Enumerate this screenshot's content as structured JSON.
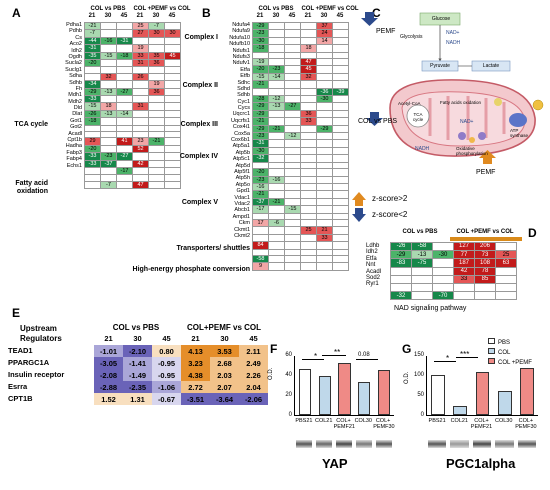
{
  "panelA": {
    "label": "A",
    "head1": "COL vs PBS",
    "head2": "COL +PEMF vs COL",
    "cols": [
      "21",
      "30",
      "45",
      "21",
      "30",
      "45"
    ],
    "genes": [
      "Pdha1",
      "Pdhb",
      "Cs",
      "Aco2",
      "Idh2",
      "Ogdh",
      "Sucla2",
      "Suclg1",
      "Sdha",
      "Sdhb",
      "Fh",
      "Mdh1",
      "Mdh2",
      "Dld",
      "Dlat",
      "Got1",
      "Got2",
      "Acadl",
      "Cpt1b",
      "Hadha",
      "Fabp3",
      "Fabp4",
      "Echs1"
    ],
    "vals": [
      [
        "-21",
        "",
        "",
        "25",
        "-7",
        ""
      ],
      [
        "-7",
        "",
        "",
        "27",
        "30",
        "30"
      ],
      [
        "-44",
        "-16",
        "-31",
        "",
        "",
        ""
      ],
      [
        "-31",
        "",
        "",
        "19",
        "",
        ""
      ],
      [
        "-35",
        "-15",
        "-18",
        "33",
        "35",
        "45"
      ],
      [
        "-20",
        "",
        "",
        "31",
        "36",
        ""
      ],
      [
        "",
        "",
        "",
        "",
        "",
        ""
      ],
      [
        "",
        "32",
        "",
        "26",
        "",
        ""
      ],
      [
        "-34",
        "",
        "",
        "",
        "19",
        ""
      ],
      [
        "-29",
        "-13",
        "-27",
        "",
        "36",
        ""
      ],
      [
        "-33",
        "",
        "",
        "",
        "",
        ""
      ],
      [
        "-15",
        "18",
        "",
        "31",
        "",
        ""
      ],
      [
        "-26",
        "-13",
        "-14",
        "",
        "",
        ""
      ],
      [
        "-18",
        "",
        "",
        "",
        "",
        ""
      ],
      [
        "",
        "",
        "",
        "",
        "",
        ""
      ],
      [
        "",
        "",
        "",
        "",
        "",
        ""
      ],
      [
        "29",
        "",
        "41",
        "23",
        "-21",
        ""
      ],
      [
        "-20",
        "",
        "",
        "52",
        "",
        ""
      ],
      [
        "-33",
        "-23",
        "-27",
        "",
        "",
        ""
      ],
      [
        "-33",
        "-37",
        "",
        "42",
        "",
        ""
      ],
      [
        "",
        "",
        "-17",
        "",
        "",
        ""
      ],
      [
        "",
        "",
        "",
        "",
        "",
        ""
      ],
      [
        "",
        "-7",
        "",
        "47",
        "",
        ""
      ]
    ],
    "colors": [
      [
        "g1",
        "w",
        "w",
        "r1",
        "g1",
        "w"
      ],
      [
        "g1",
        "w",
        "w",
        "r2",
        "r2",
        "r2"
      ],
      [
        "g3",
        "g2",
        "g3",
        "w",
        "w",
        "w"
      ],
      [
        "g3",
        "w",
        "w",
        "r1",
        "w",
        "w"
      ],
      [
        "g3",
        "g1",
        "g2",
        "r2",
        "r2",
        "r3"
      ],
      [
        "g2",
        "w",
        "w",
        "r2",
        "r2",
        "w"
      ],
      [
        "w",
        "w",
        "w",
        "w",
        "w",
        "w"
      ],
      [
        "w",
        "r2",
        "w",
        "r2",
        "w",
        "w"
      ],
      [
        "g3",
        "w",
        "w",
        "w",
        "r1",
        "w"
      ],
      [
        "g2",
        "g1",
        "g2",
        "w",
        "r2",
        "w"
      ],
      [
        "g3",
        "w",
        "w",
        "w",
        "w",
        "w"
      ],
      [
        "g1",
        "r1",
        "w",
        "r2",
        "w",
        "w"
      ],
      [
        "g2",
        "g1",
        "g1",
        "w",
        "w",
        "w"
      ],
      [
        "g2",
        "w",
        "w",
        "w",
        "w",
        "w"
      ],
      [
        "w",
        "w",
        "w",
        "w",
        "w",
        "w"
      ],
      [
        "w",
        "w",
        "w",
        "w",
        "w",
        "w"
      ],
      [
        "r2",
        "w",
        "r3",
        "r1",
        "g2",
        "w"
      ],
      [
        "g2",
        "w",
        "w",
        "r3",
        "w",
        "w"
      ],
      [
        "g3",
        "g2",
        "g3",
        "w",
        "w",
        "w"
      ],
      [
        "g3",
        "g3",
        "w",
        "r3",
        "w",
        "w"
      ],
      [
        "w",
        "w",
        "g2",
        "w",
        "w",
        "w"
      ],
      [
        "w",
        "w",
        "w",
        "w",
        "w",
        "w"
      ],
      [
        "w",
        "g1",
        "w",
        "r3",
        "w",
        "w"
      ]
    ],
    "groups": [
      "TCA cycle",
      "Fatty acid oxidation"
    ]
  },
  "panelB": {
    "label": "B",
    "head1": "COL vs PBS",
    "head2": "COL +PEMF vs COL",
    "cols": [
      "21",
      "30",
      "45",
      "21",
      "30",
      "45"
    ],
    "genes": [
      "Ndufa4",
      "Ndufa9",
      "Ndufa10",
      "Ndufb10",
      "Ndufs1",
      "Ndufs3",
      "Ndufv1",
      "Etfa",
      "Etfb",
      "Sdhc",
      "Sdhd",
      "Sdhb",
      "Cyc1",
      "Cycs",
      "Uqcrc1",
      "Uqcrfs1",
      "Cox4i1",
      "Cox5a",
      "Cox6b1",
      "Atp5a1",
      "Atp5b",
      "Atp5c1",
      "Atp5d",
      "Atp5f1",
      "Atp5h",
      "Atp5o",
      "Gpd1",
      "Vdac1",
      "Vdac2",
      "Abcb1",
      "Ampd1",
      "Ckm",
      "Ckmt1",
      "Ckmt2"
    ],
    "vals": [
      [
        "-29",
        "",
        "",
        "",
        "37",
        ""
      ],
      [
        "-23",
        "",
        "",
        "",
        "24",
        ""
      ],
      [
        "-30",
        "",
        "",
        "",
        "14",
        ""
      ],
      [
        "-18",
        "",
        "",
        "18",
        "",
        ""
      ],
      [
        "",
        "",
        "",
        "",
        "",
        ""
      ],
      [
        "-19",
        "",
        "",
        "47",
        "",
        ""
      ],
      [
        "-20",
        "-23",
        "",
        "45",
        "",
        ""
      ],
      [
        "-15",
        "-14",
        "",
        "32",
        "",
        ""
      ],
      [
        "-21",
        "",
        "",
        "",
        "",
        ""
      ],
      [
        "",
        "",
        "",
        "",
        "-36",
        "-39"
      ],
      [
        "-28",
        "-12",
        "",
        "",
        "-30",
        ""
      ],
      [
        "-29",
        "-13",
        "-27",
        "",
        "",
        ""
      ],
      [
        "-29",
        "",
        "",
        "36",
        "",
        ""
      ],
      [
        "-21",
        "",
        "",
        "33",
        "",
        ""
      ],
      [
        "-29",
        "-21",
        "",
        "",
        "-29",
        ""
      ],
      [
        "-23",
        "",
        "-12",
        "",
        "",
        ""
      ],
      [
        "-31",
        "",
        "",
        "",
        "",
        ""
      ],
      [
        "-30",
        "",
        "",
        "",
        "",
        ""
      ],
      [
        "-32",
        "",
        "",
        "",
        "",
        ""
      ],
      [
        "",
        "",
        "",
        "",
        "",
        ""
      ],
      [
        "-20",
        "",
        "",
        "",
        "",
        ""
      ],
      [
        "-23",
        "-16",
        "",
        "",
        "",
        ""
      ],
      [
        "-16",
        "",
        "",
        "",
        "",
        ""
      ],
      [
        "-21",
        "",
        "",
        "",
        "",
        ""
      ],
      [
        "-37",
        "-21",
        "",
        "",
        "",
        ""
      ],
      [
        "-17",
        "",
        "-15",
        "",
        "",
        ""
      ],
      [
        "",
        "",
        "",
        "",
        "",
        ""
      ],
      [
        "17",
        "-6",
        "",
        "",
        "",
        ""
      ],
      [
        "",
        "",
        "",
        "25",
        "21",
        ""
      ],
      [
        "",
        "",
        "",
        "",
        "33",
        ""
      ],
      [
        "84",
        "",
        "",
        "",
        "",
        ""
      ],
      [
        "",
        "",
        "",
        "",
        "",
        ""
      ],
      [
        "-58",
        "",
        "",
        "",
        "",
        ""
      ],
      [
        "9",
        "",
        "",
        "",
        "",
        ""
      ]
    ],
    "colors": [
      [
        "g2",
        "w",
        "w",
        "w",
        "r2",
        "w"
      ],
      [
        "g2",
        "w",
        "w",
        "w",
        "r2",
        "w"
      ],
      [
        "g2",
        "w",
        "w",
        "w",
        "r1",
        "w"
      ],
      [
        "g2",
        "w",
        "w",
        "r1",
        "w",
        "w"
      ],
      [
        "w",
        "w",
        "w",
        "w",
        "w",
        "w"
      ],
      [
        "g1",
        "w",
        "w",
        "r3",
        "w",
        "w"
      ],
      [
        "g2",
        "g2",
        "w",
        "r3",
        "w",
        "w"
      ],
      [
        "g1",
        "g1",
        "w",
        "r2",
        "w",
        "w"
      ],
      [
        "g2",
        "w",
        "w",
        "w",
        "w",
        "w"
      ],
      [
        "w",
        "w",
        "w",
        "w",
        "g3",
        "g3"
      ],
      [
        "g2",
        "g1",
        "w",
        "w",
        "g2",
        "w"
      ],
      [
        "g2",
        "g1",
        "g2",
        "w",
        "w",
        "w"
      ],
      [
        "g2",
        "w",
        "w",
        "r2",
        "w",
        "w"
      ],
      [
        "g2",
        "w",
        "w",
        "r2",
        "w",
        "w"
      ],
      [
        "g2",
        "g2",
        "w",
        "w",
        "g2",
        "w"
      ],
      [
        "g2",
        "w",
        "g1",
        "w",
        "w",
        "w"
      ],
      [
        "g3",
        "w",
        "w",
        "w",
        "w",
        "w"
      ],
      [
        "g2",
        "w",
        "w",
        "w",
        "w",
        "w"
      ],
      [
        "g3",
        "w",
        "w",
        "w",
        "w",
        "w"
      ],
      [
        "w",
        "w",
        "w",
        "w",
        "w",
        "w"
      ],
      [
        "g2",
        "w",
        "w",
        "w",
        "w",
        "w"
      ],
      [
        "g2",
        "g1",
        "w",
        "w",
        "w",
        "w"
      ],
      [
        "g1",
        "w",
        "w",
        "w",
        "w",
        "w"
      ],
      [
        "g2",
        "w",
        "w",
        "w",
        "w",
        "w"
      ],
      [
        "g3",
        "g2",
        "w",
        "w",
        "w",
        "w"
      ],
      [
        "g1",
        "w",
        "g1",
        "w",
        "w",
        "w"
      ],
      [
        "w",
        "w",
        "w",
        "w",
        "w",
        "w"
      ],
      [
        "r1",
        "g1",
        "w",
        "w",
        "w",
        "w"
      ],
      [
        "w",
        "w",
        "w",
        "r2",
        "r2",
        "w"
      ],
      [
        "w",
        "w",
        "w",
        "w",
        "r2",
        "w"
      ],
      [
        "r3",
        "w",
        "w",
        "w",
        "w",
        "w"
      ],
      [
        "w",
        "w",
        "w",
        "w",
        "w",
        "w"
      ],
      [
        "g3",
        "w",
        "w",
        "w",
        "w",
        "w"
      ],
      [
        "r1",
        "w",
        "w",
        "w",
        "w",
        "w"
      ]
    ],
    "groups": [
      "Complex I",
      "Complex II",
      "Complex III",
      "Complex IV",
      "Complex V",
      "Transporters/ shuttles",
      "High-energy phosphate conversion"
    ]
  },
  "panelC": {
    "label": "C",
    "pemf1": "PEMF",
    "colpemf": "COL vs PBS",
    "pemf2": "PEMF",
    "glucose": "Glucose",
    "glycolysis": "Glycolysis",
    "nad1": "NAD+",
    "nadh1": "NADH",
    "pyruvate": "Pyruvate",
    "lactate": "Lactate",
    "acetyl": "Acetyl-CoA",
    "tca": "TCA cycle",
    "fao": "Fatty acids oxidation",
    "atp": "ATP synthase",
    "oxphos": "Oxidative phosphorylation",
    "nadh2": "NADH",
    "nad2": "NAD+",
    "legend_up": "z-score>2",
    "legend_down": "z-score<2"
  },
  "panelD": {
    "label": "D",
    "head1": "COL vs PBS",
    "head2": "COL +PEMF vs COL",
    "genes": [
      "Ldhb",
      "Idh2",
      "Etfa",
      "Nnt",
      "Acadl",
      "Sod2",
      "Ryr1"
    ],
    "vals": [
      [
        "-26",
        "-58",
        "",
        "127",
        "206",
        ""
      ],
      [
        "-29",
        "-13",
        "-30",
        "77",
        "73",
        "25"
      ],
      [
        "-83",
        "-75",
        "",
        "187",
        "108",
        "63"
      ],
      [
        "",
        "",
        "",
        "42",
        "78",
        ""
      ],
      [
        "",
        "",
        "",
        "33",
        "85",
        ""
      ],
      [
        "",
        "",
        "",
        "",
        "",
        ""
      ],
      [
        "-32",
        "",
        "-70",
        "",
        "",
        ""
      ]
    ],
    "colors": [
      [
        "g3",
        "g3",
        "w",
        "r3",
        "r3",
        "w"
      ],
      [
        "g2",
        "g1",
        "g2",
        "r3",
        "r3",
        "r2"
      ],
      [
        "g3",
        "g3",
        "w",
        "r3",
        "r3",
        "r3"
      ],
      [
        "w",
        "w",
        "w",
        "r3",
        "r3",
        "w"
      ],
      [
        "w",
        "w",
        "w",
        "r2",
        "r3",
        "w"
      ],
      [
        "w",
        "w",
        "w",
        "w",
        "w",
        "w"
      ],
      [
        "g3",
        "w",
        "g3",
        "w",
        "w",
        "w"
      ]
    ],
    "caption": "NAD signaling pathway"
  },
  "panelE": {
    "label": "E",
    "head_reg": "Upstream Regulators",
    "head1": "COL vs  PBS",
    "head2": "COL+PEMF vs COL",
    "cols": [
      "21",
      "30",
      "45",
      "21",
      "30",
      "45"
    ],
    "rows": [
      {
        "name": "TEAD1",
        "v": [
          "-1.01",
          "-2.10",
          "0.80",
          "4.13",
          "3.53",
          "2.11"
        ]
      },
      {
        "name": "PPARGC1A",
        "v": [
          "-3.05",
          "-1.41",
          "-0.95",
          "3.23",
          "2.68",
          "2.49"
        ]
      },
      {
        "name": "Insulin receptor",
        "v": [
          "-2.08",
          "-1.49",
          "-0.95",
          "4.38",
          "2.03",
          "2.26"
        ]
      },
      {
        "name": "Esrra",
        "v": [
          "-2.88",
          "-2.35",
          "-1.06",
          "2.72",
          "2.07",
          "2.04"
        ]
      },
      {
        "name": "CPT1B",
        "v": [
          "1.52",
          "1.31",
          "-0.67",
          "-3.51",
          "-3.64",
          "-2.06"
        ]
      }
    ]
  },
  "panelF": {
    "label": "F",
    "ylabel": "O.D.",
    "title": "YAP",
    "ticks": [
      "60",
      "40",
      "20",
      "0"
    ],
    "cats": [
      "PBS21",
      "COL21",
      "COL+ PEMF21",
      "COL30",
      "COL+ PEMF30"
    ],
    "values": [
      46,
      39,
      52,
      33,
      45
    ],
    "ylim": [
      0,
      60
    ],
    "sig": [
      "*",
      "**",
      "0.08"
    ]
  },
  "panelG": {
    "label": "G",
    "ylabel": "O.D.",
    "title": "PGC1alpha",
    "ticks": [
      "150",
      "100",
      "50",
      "0"
    ],
    "cats": [
      "PBS21",
      "COL21",
      "COL+ PEMF21",
      "COL30",
      "COL+ PEMF30"
    ],
    "values": [
      100,
      22,
      107,
      60,
      118
    ],
    "ylim": [
      0,
      150
    ],
    "sig": [
      "*",
      "***"
    ]
  },
  "legend": {
    "items": [
      "PBS",
      "COL",
      "COL +PEMF"
    ]
  },
  "colors": {
    "g1": "#a9d9b0",
    "g2": "#4cb369",
    "g3": "#16884a",
    "r1": "#f2a6a6",
    "r2": "#e45656",
    "r3": "#c21b1b",
    "w": "#ffffff",
    "pbs": "#ffffff",
    "col": "#bfd8ea",
    "pemf": "#ef8a86",
    "zneg_strong": "#6a63b8",
    "zneg": "#aaa6d8",
    "zpos_strong": "#e58e2a",
    "zpos": "#f2c28a"
  }
}
